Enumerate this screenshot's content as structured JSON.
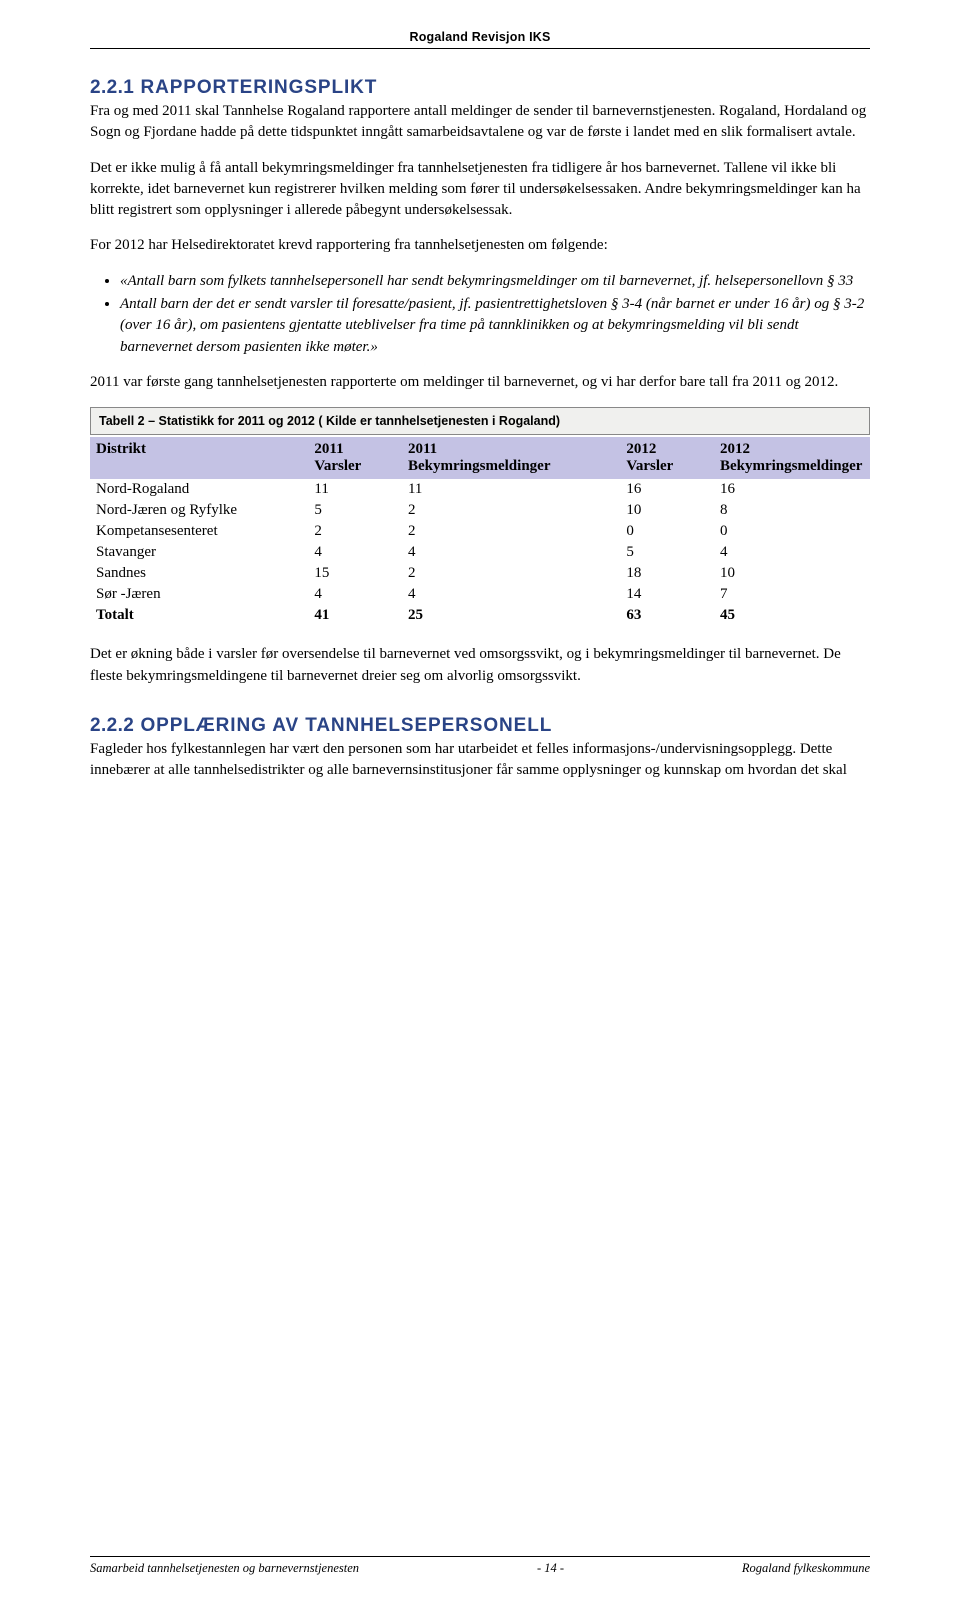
{
  "header": {
    "running": "Rogaland Revisjon IKS"
  },
  "section_1": {
    "num": "2.2.1",
    "title": "RAPPORTERINGSPLIKT",
    "p1": "Fra og med 2011 skal Tannhelse Rogaland rapportere antall meldinger de sender til barnevernstjenesten. Rogaland, Hordaland og Sogn og Fjordane hadde på dette tidspunktet inngått samarbeidsavtalene og var de første i landet med en slik formalisert avtale.",
    "p2": "Det er ikke mulig å få antall bekymringsmeldinger fra tannhelsetjenesten fra tidligere år hos barnevernet. Tallene vil ikke bli korrekte, idet barnevernet kun registrerer hvilken melding som fører til undersøkelsessaken. Andre bekymringsmeldinger kan ha blitt registrert som opplysninger i allerede påbegynt undersøkelsessak.",
    "p3_lead": "For 2012 har Helsedirektoratet krevd rapportering fra tannhelsetjenesten om følgende:",
    "bullet1": "«Antall barn som fylkets tannhelsepersonell har sendt bekymringsmeldinger om til barnevernet, jf. helsepersonellovn § 33",
    "bullet2": "Antall barn der det er sendt varsler til foresatte/pasient, jf. pasientrettighetsloven § 3-4 (når barnet er under 16 år) og § 3-2 (over 16 år), om pasientens gjentatte uteblivelser fra time på tannklinikken og at bekymringsmelding vil bli sendt barnevernet dersom pasienten ikke møter.»",
    "p4": "2011 var første gang tannhelsetjenesten rapporterte om meldinger til barnevernet, og vi har derfor bare tall fra 2011 og 2012."
  },
  "table": {
    "caption": "Tabell 2 – Statistikk for 2011 og 2012 ( Kilde er tannhelsetjenesten i Rogaland)",
    "head": {
      "c0": "Distrikt",
      "c1": "2011\nVarsler",
      "c2": "2011\nBekymringsmeldinger",
      "c3": "2012\nVarsler",
      "c4": "2012\nBekymringsmeldinger"
    },
    "rows": [
      {
        "d": "Nord-Rogaland",
        "v1": "11",
        "b1": "11",
        "v2": "16",
        "b2": "16"
      },
      {
        "d": "Nord-Jæren og Ryfylke",
        "v1": "5",
        "b1": "2",
        "v2": "10",
        "b2": "8"
      },
      {
        "d": "Kompetansesenteret",
        "v1": "2",
        "b1": "2",
        "v2": "0",
        "b2": "0"
      },
      {
        "d": "Stavanger",
        "v1": "4",
        "b1": "4",
        "v2": "5",
        "b2": "4"
      },
      {
        "d": "Sandnes",
        "v1": "15",
        "b1": "2",
        "v2": "18",
        "b2": "10"
      },
      {
        "d": "Sør -Jæren",
        "v1": "4",
        "b1": "4",
        "v2": "14",
        "b2": "7"
      }
    ],
    "total": {
      "d": "Totalt",
      "v1": "41",
      "b1": "25",
      "v2": "63",
      "b2": "45"
    },
    "header_bg": "#c4c2e4",
    "caption_bg": "#f0f0ee"
  },
  "after_table": {
    "p1": "Det er økning både i varsler før oversendelse til barnevernet ved omsorgssvikt, og i bekymringsmeldinger til barnevernet. De fleste bekymringsmeldingene til barnevernet dreier seg om alvorlig omsorgssvikt."
  },
  "section_2": {
    "num": "2.2.2",
    "title": "OPPLÆRING AV TANNHELSEPERSONELL",
    "p1": "Fagleder hos fylkestannlegen har vært den personen som har utarbeidet et felles informasjons-/undervisningsopplegg. Dette innebærer at alle tannhelsedistrikter og alle barnevernsinstitusjoner får samme opplysninger og kunnskap om hvordan det skal"
  },
  "footer": {
    "left": "Samarbeid tannhelsetjenesten og barnevernstjenesten",
    "center": "- 14 -",
    "right": "Rogaland fylkeskommune"
  }
}
